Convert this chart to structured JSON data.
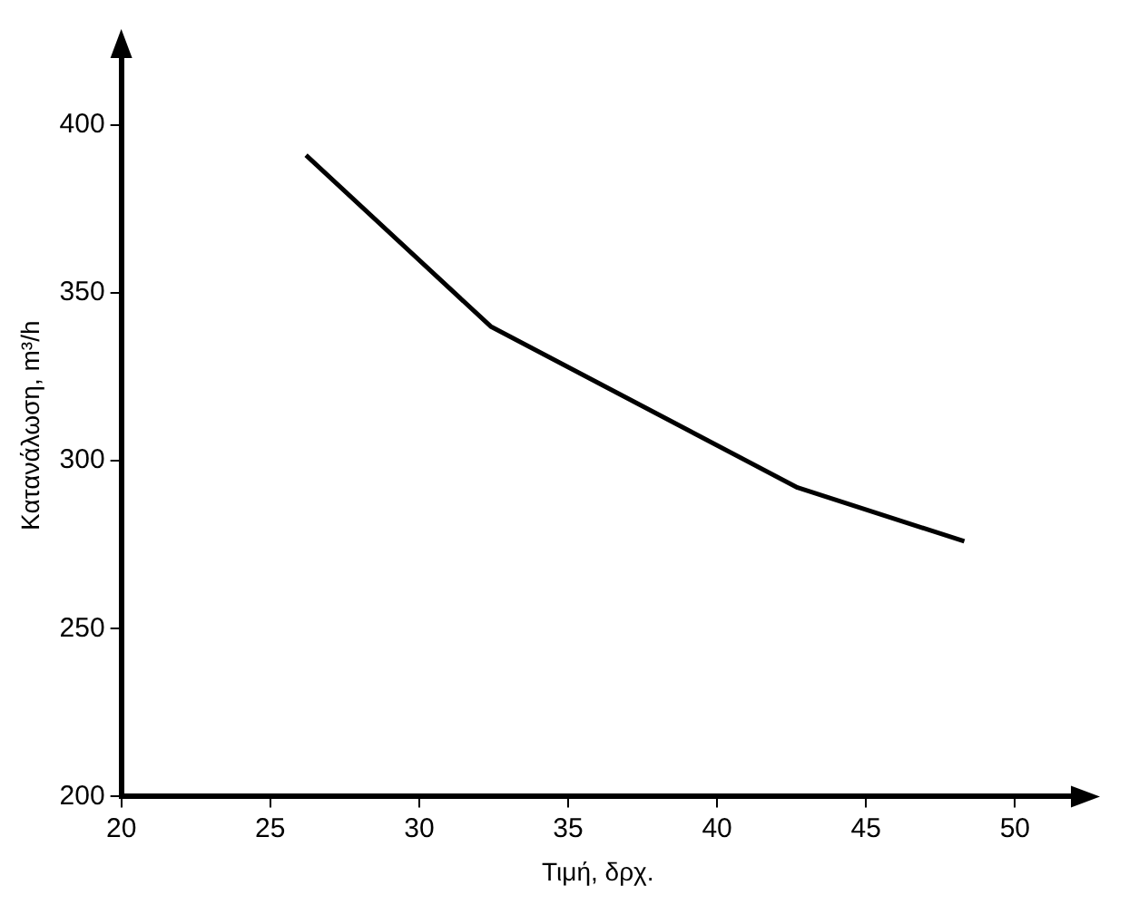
{
  "chart_data": {
    "type": "line",
    "xlabel": "Τιμή, δρχ.",
    "ylabel": "Κατανάλωση, m³/h",
    "x": [
      26.2,
      32.4,
      42.7,
      48.3
    ],
    "series": [
      {
        "color": "#000000",
        "values": [
          391,
          340,
          292,
          276
        ]
      }
    ],
    "xlim": [
      20,
      52
    ],
    "ylim": [
      200,
      421
    ],
    "xticks": [
      20,
      25,
      30,
      35,
      40,
      45,
      50
    ],
    "yticks": [
      200,
      250,
      300,
      350,
      400
    ],
    "grid": false,
    "legend": false,
    "marker": "none",
    "line_style": "solid"
  }
}
